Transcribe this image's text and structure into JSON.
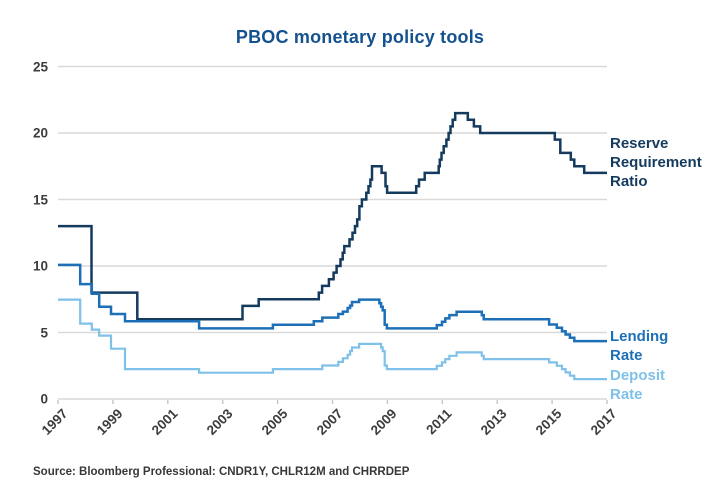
{
  "title": "PBOC monetary policy tools",
  "title_color": "#14528f",
  "source": "Source: Bloomberg Professional: CNDR1Y, CHLR12M and CHRRDEP",
  "colors": {
    "rrr_line": "#143a5e",
    "lending_line": "#1d70b7",
    "deposit_line": "#7fc1e8",
    "gridline": "#d9d9d9",
    "tick": "#c9c9c9",
    "axis_text": "#3d3d3d"
  },
  "chart_data": {
    "type": "line",
    "step": true,
    "title": "PBOC monetary policy tools",
    "xlabel": "",
    "ylabel": "",
    "xlim": [
      1997,
      2017
    ],
    "ylim": [
      0,
      25
    ],
    "x_ticks": [
      "1997",
      "1999",
      "2001",
      "2003",
      "2005",
      "2007",
      "2009",
      "2011",
      "2013",
      "2015",
      "2017"
    ],
    "y_ticks": [
      "25",
      "20",
      "15",
      "10",
      "5",
      "0"
    ],
    "grid": "horizontal",
    "legend_position": "right-of-line-ends",
    "series": [
      {
        "name": "Reserve Requirement Ratio",
        "label": "Reserve\nRequirement\nRatio",
        "color": "#143a5e",
        "width": 2.5,
        "points": [
          [
            1997.0,
            13
          ],
          [
            1998.22,
            8
          ],
          [
            1999.89,
            6
          ],
          [
            2003.72,
            7
          ],
          [
            2004.31,
            7.5
          ],
          [
            2006.5,
            8
          ],
          [
            2006.62,
            8.5
          ],
          [
            2006.87,
            9
          ],
          [
            2007.04,
            9.5
          ],
          [
            2007.15,
            10
          ],
          [
            2007.29,
            10.5
          ],
          [
            2007.37,
            11
          ],
          [
            2007.43,
            11.5
          ],
          [
            2007.62,
            12
          ],
          [
            2007.73,
            12.5
          ],
          [
            2007.82,
            13
          ],
          [
            2007.9,
            13.5
          ],
          [
            2007.98,
            14.5
          ],
          [
            2008.07,
            15
          ],
          [
            2008.23,
            15.5
          ],
          [
            2008.31,
            16
          ],
          [
            2008.38,
            16.5
          ],
          [
            2008.44,
            17.5
          ],
          [
            2008.79,
            17
          ],
          [
            2008.93,
            16
          ],
          [
            2008.99,
            15.5
          ],
          [
            2010.05,
            16
          ],
          [
            2010.15,
            16.5
          ],
          [
            2010.36,
            17
          ],
          [
            2010.87,
            17.5
          ],
          [
            2010.91,
            18
          ],
          [
            2010.97,
            18.5
          ],
          [
            2011.05,
            19
          ],
          [
            2011.15,
            19.5
          ],
          [
            2011.23,
            20
          ],
          [
            2011.3,
            20.5
          ],
          [
            2011.38,
            21
          ],
          [
            2011.47,
            21.5
          ],
          [
            2011.93,
            21
          ],
          [
            2012.15,
            20.5
          ],
          [
            2012.38,
            20
          ],
          [
            2015.1,
            19.5
          ],
          [
            2015.3,
            18.5
          ],
          [
            2015.68,
            18
          ],
          [
            2015.81,
            17.5
          ],
          [
            2016.17,
            17
          ]
        ]
      },
      {
        "name": "Lending Rate",
        "label": "Lending\nRate",
        "color": "#1d70b7",
        "width": 2.5,
        "points": [
          [
            1997.0,
            10.08
          ],
          [
            1997.81,
            8.64
          ],
          [
            1998.23,
            7.92
          ],
          [
            1998.5,
            6.93
          ],
          [
            1998.93,
            6.39
          ],
          [
            1999.44,
            5.85
          ],
          [
            2002.14,
            5.31
          ],
          [
            2004.83,
            5.58
          ],
          [
            2006.32,
            5.85
          ],
          [
            2006.63,
            6.12
          ],
          [
            2007.21,
            6.39
          ],
          [
            2007.38,
            6.57
          ],
          [
            2007.55,
            6.84
          ],
          [
            2007.64,
            7.02
          ],
          [
            2007.71,
            7.29
          ],
          [
            2007.97,
            7.47
          ],
          [
            2008.71,
            7.2
          ],
          [
            2008.77,
            6.93
          ],
          [
            2008.83,
            6.66
          ],
          [
            2008.9,
            5.58
          ],
          [
            2008.98,
            5.31
          ],
          [
            2010.8,
            5.56
          ],
          [
            2010.99,
            5.81
          ],
          [
            2011.11,
            6.06
          ],
          [
            2011.26,
            6.31
          ],
          [
            2011.52,
            6.56
          ],
          [
            2012.44,
            6.31
          ],
          [
            2012.51,
            6.0
          ],
          [
            2014.89,
            5.6
          ],
          [
            2015.17,
            5.35
          ],
          [
            2015.36,
            5.1
          ],
          [
            2015.49,
            4.85
          ],
          [
            2015.65,
            4.6
          ],
          [
            2015.81,
            4.35
          ]
        ]
      },
      {
        "name": "Deposit Rate",
        "label": "Deposit\nRate",
        "color": "#7fc1e8",
        "width": 2.2,
        "points": [
          [
            1997.0,
            7.47
          ],
          [
            1997.81,
            5.67
          ],
          [
            1998.23,
            5.22
          ],
          [
            1998.5,
            4.77
          ],
          [
            1998.93,
            3.78
          ],
          [
            1999.44,
            2.25
          ],
          [
            2002.14,
            1.98
          ],
          [
            2004.83,
            2.25
          ],
          [
            2006.63,
            2.52
          ],
          [
            2007.21,
            2.79
          ],
          [
            2007.38,
            3.06
          ],
          [
            2007.55,
            3.33
          ],
          [
            2007.64,
            3.6
          ],
          [
            2007.71,
            3.87
          ],
          [
            2007.97,
            4.14
          ],
          [
            2008.77,
            3.87
          ],
          [
            2008.83,
            3.6
          ],
          [
            2008.9,
            2.52
          ],
          [
            2008.98,
            2.25
          ],
          [
            2010.8,
            2.5
          ],
          [
            2010.99,
            2.75
          ],
          [
            2011.11,
            3.0
          ],
          [
            2011.26,
            3.25
          ],
          [
            2011.52,
            3.5
          ],
          [
            2012.44,
            3.25
          ],
          [
            2012.51,
            3.0
          ],
          [
            2014.89,
            2.75
          ],
          [
            2015.17,
            2.5
          ],
          [
            2015.36,
            2.25
          ],
          [
            2015.49,
            2.0
          ],
          [
            2015.65,
            1.75
          ],
          [
            2015.81,
            1.5
          ]
        ]
      }
    ]
  }
}
